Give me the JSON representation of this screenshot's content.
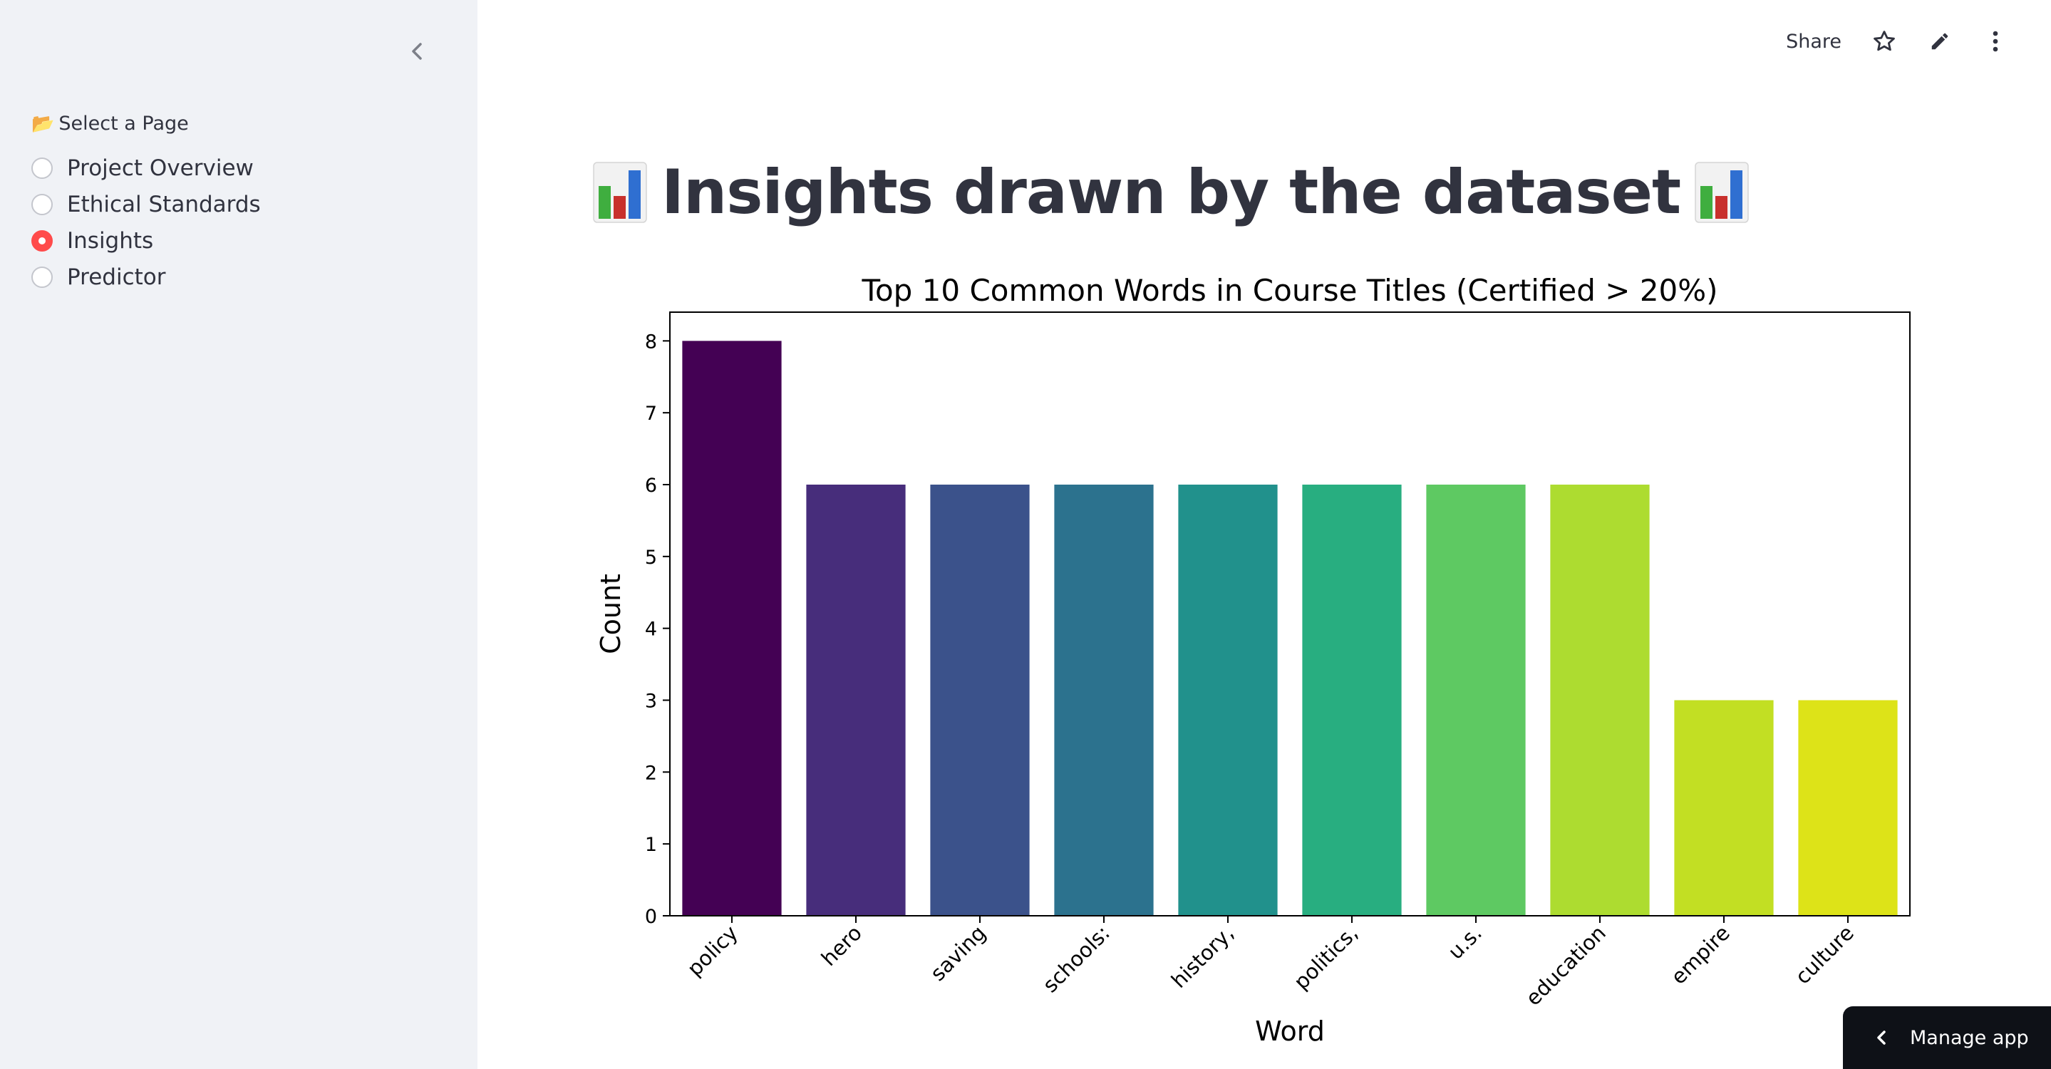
{
  "sidebar": {
    "nav_label": "Select a Page",
    "options": [
      {
        "label": "Project Overview",
        "selected": false
      },
      {
        "label": "Ethical Standards",
        "selected": false
      },
      {
        "label": "Insights",
        "selected": true
      },
      {
        "label": "Predictor",
        "selected": false
      }
    ],
    "accent_color": "#ff4b4b"
  },
  "toolbar": {
    "share_label": "Share"
  },
  "page": {
    "title": "Insights drawn by the dataset"
  },
  "manage_app": {
    "label": "Manage app"
  },
  "chart_data": {
    "type": "bar",
    "title": "Top 10 Common Words in Course Titles (Certified > 20%)",
    "xlabel": "Word",
    "ylabel": "Count",
    "categories": [
      "policy",
      "hero",
      "saving",
      "schools:",
      "history,",
      "politics,",
      "u.s.",
      "education",
      "empire",
      "culture"
    ],
    "values": [
      8,
      6,
      6,
      6,
      6,
      6,
      6,
      6,
      3,
      3
    ],
    "colors": [
      "#440154",
      "#472d7b",
      "#3b528b",
      "#2c728e",
      "#21918c",
      "#28ae80",
      "#5ec962",
      "#addc30",
      "#c2df23",
      "#dde318"
    ],
    "ylim": [
      0,
      8.4
    ],
    "yticks": [
      0,
      1,
      2,
      3,
      4,
      5,
      6,
      7,
      8
    ],
    "grid": false
  }
}
